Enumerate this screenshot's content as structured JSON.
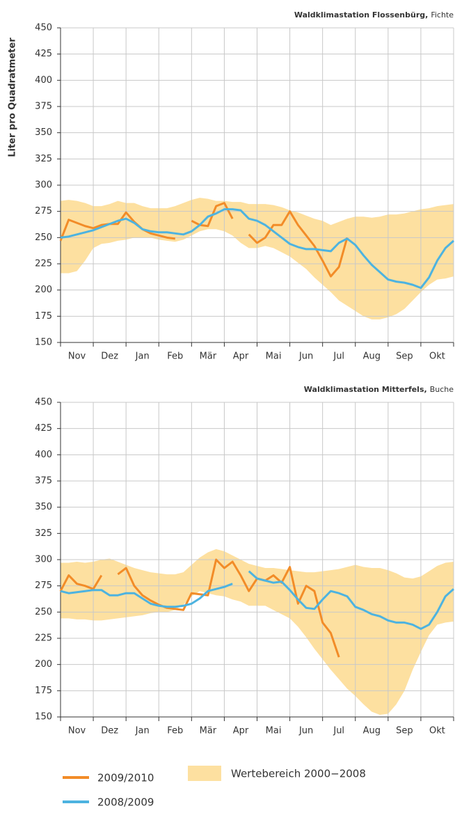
{
  "chart_data": [
    {
      "type": "line",
      "title": "Waldklimastation Flossenbürg,",
      "subtitle": "Fichte",
      "y_label": "Liter pro Quadratmeter",
      "xlim": [
        0,
        12
      ],
      "ylim": [
        150,
        450
      ],
      "yticks": [
        150,
        175,
        200,
        225,
        250,
        275,
        300,
        325,
        350,
        375,
        400,
        425,
        450
      ],
      "grid": true,
      "xticks": [
        {
          "value": 0.5,
          "label": "Nov"
        },
        {
          "value": 1.5,
          "label": "Dez"
        },
        {
          "value": 2.5,
          "label": "Jan"
        },
        {
          "value": 3.5,
          "label": "Feb"
        },
        {
          "value": 4.5,
          "label": "Mär"
        },
        {
          "value": 5.5,
          "label": "Apr"
        },
        {
          "value": 6.5,
          "label": "Mai"
        },
        {
          "value": 7.5,
          "label": "Jun"
        },
        {
          "value": 8.5,
          "label": "Jul"
        },
        {
          "value": 9.5,
          "label": "Aug"
        },
        {
          "value": 10.5,
          "label": "Sep"
        },
        {
          "value": 11.5,
          "label": "Okt"
        }
      ],
      "x": [
        0,
        0.25,
        0.5,
        0.75,
        1,
        1.25,
        1.5,
        1.75,
        2,
        2.25,
        2.5,
        2.75,
        3,
        3.25,
        3.5,
        3.75,
        4,
        4.25,
        4.5,
        4.75,
        5,
        5.25,
        5.5,
        5.75,
        6,
        6.25,
        6.5,
        6.75,
        7,
        7.25,
        7.5,
        7.75,
        8,
        8.25,
        8.5,
        8.75,
        9,
        9.25,
        9.5,
        9.75,
        10,
        10.25,
        10.5,
        10.75,
        11,
        11.25,
        11.5,
        11.75,
        12
      ],
      "band": {
        "name": "Wertebereich 2000−2008",
        "color": "#fde0a0",
        "high": [
          285,
          286,
          285,
          283,
          280,
          280,
          282,
          285,
          283,
          283,
          280,
          278,
          278,
          278,
          280,
          283,
          286,
          288,
          287,
          285,
          285,
          284,
          284,
          282,
          282,
          282,
          281,
          279,
          276,
          274,
          271,
          268,
          266,
          262,
          265,
          268,
          270,
          270,
          269,
          270,
          272,
          272,
          273,
          275,
          277,
          278,
          280,
          281,
          282
        ],
        "low": [
          216,
          216,
          218,
          228,
          240,
          244,
          245,
          247,
          248,
          250,
          250,
          250,
          248,
          247,
          246,
          248,
          252,
          256,
          258,
          258,
          256,
          252,
          245,
          240,
          240,
          242,
          240,
          236,
          232,
          226,
          220,
          212,
          205,
          198,
          190,
          185,
          180,
          175,
          172,
          172,
          174,
          177,
          182,
          190,
          198,
          205,
          210,
          211,
          213
        ]
      },
      "series": [
        {
          "name": "2009/2010",
          "color": "#f28c28",
          "values": [
            247,
            267,
            264,
            261,
            259,
            262,
            263,
            263,
            274,
            265,
            258,
            254,
            252,
            250,
            249,
            null,
            266,
            262,
            261,
            280,
            283,
            268,
            null,
            253,
            245,
            250,
            262,
            262,
            275,
            262,
            252,
            242,
            228,
            213,
            222,
            250,
            null,
            null,
            null,
            null,
            null,
            null,
            null,
            null,
            null,
            null,
            null,
            null,
            null
          ]
        },
        {
          "name": "2008/2009",
          "color": "#4db3e0",
          "values": [
            250,
            251,
            253,
            255,
            257,
            260,
            263,
            266,
            268,
            264,
            258,
            256,
            255,
            255,
            254,
            253,
            256,
            262,
            270,
            273,
            277,
            277,
            276,
            268,
            266,
            262,
            256,
            250,
            244,
            241,
            239,
            239,
            238,
            237,
            245,
            249,
            243,
            233,
            224,
            217,
            210,
            208,
            207,
            205,
            202,
            212,
            228,
            240,
            247
          ]
        }
      ]
    },
    {
      "type": "line",
      "title": "Waldklimastation Mitterfels,",
      "subtitle": "Buche",
      "xlim": [
        0,
        12
      ],
      "ylim": [
        150,
        450
      ],
      "yticks": [
        150,
        175,
        200,
        225,
        250,
        275,
        300,
        325,
        350,
        375,
        400,
        425,
        450
      ],
      "grid": true,
      "xticks": [
        {
          "value": 0.5,
          "label": "Nov"
        },
        {
          "value": 1.5,
          "label": "Dez"
        },
        {
          "value": 2.5,
          "label": "Jan"
        },
        {
          "value": 3.5,
          "label": "Feb"
        },
        {
          "value": 4.5,
          "label": "Mär"
        },
        {
          "value": 5.5,
          "label": "Apr"
        },
        {
          "value": 6.5,
          "label": "Mai"
        },
        {
          "value": 7.5,
          "label": "Jun"
        },
        {
          "value": 8.5,
          "label": "Jul"
        },
        {
          "value": 9.5,
          "label": "Aug"
        },
        {
          "value": 10.5,
          "label": "Sep"
        },
        {
          "value": 11.5,
          "label": "Okt"
        }
      ],
      "x": [
        0,
        0.25,
        0.5,
        0.75,
        1,
        1.25,
        1.5,
        1.75,
        2,
        2.25,
        2.5,
        2.75,
        3,
        3.25,
        3.5,
        3.75,
        4,
        4.25,
        4.5,
        4.75,
        5,
        5.25,
        5.5,
        5.75,
        6,
        6.25,
        6.5,
        6.75,
        7,
        7.25,
        7.5,
        7.75,
        8,
        8.25,
        8.5,
        8.75,
        9,
        9.25,
        9.5,
        9.75,
        10,
        10.25,
        10.5,
        10.75,
        11,
        11.25,
        11.5,
        11.75,
        12
      ],
      "band": {
        "name": "Wertebereich 2000−2008",
        "color": "#fde0a0",
        "high": [
          297,
          297,
          298,
          297,
          298,
          300,
          301,
          298,
          295,
          292,
          290,
          288,
          287,
          286,
          286,
          288,
          295,
          302,
          307,
          310,
          308,
          304,
          300,
          296,
          294,
          292,
          292,
          291,
          290,
          289,
          288,
          288,
          289,
          290,
          291,
          293,
          295,
          293,
          292,
          292,
          290,
          287,
          283,
          282,
          284,
          289,
          294,
          297,
          298
        ],
        "low": [
          244,
          244,
          243,
          243,
          242,
          242,
          243,
          244,
          245,
          246,
          247,
          249,
          250,
          250,
          252,
          257,
          265,
          270,
          268,
          266,
          265,
          262,
          260,
          256,
          256,
          256,
          252,
          248,
          244,
          236,
          226,
          215,
          205,
          195,
          186,
          177,
          170,
          162,
          155,
          152,
          153,
          162,
          175,
          195,
          212,
          228,
          238,
          240,
          241
        ]
      },
      "series": [
        {
          "name": "2009/2010",
          "color": "#f28c28",
          "values": [
            270,
            285,
            277,
            275,
            272,
            285,
            null,
            286,
            292,
            275,
            266,
            261,
            257,
            254,
            253,
            252,
            268,
            267,
            266,
            300,
            292,
            298,
            285,
            270,
            282,
            280,
            285,
            278,
            293,
            258,
            275,
            270,
            240,
            230,
            207,
            null,
            null,
            null,
            null,
            null,
            null,
            null,
            null,
            null,
            null,
            null,
            null,
            null,
            null
          ]
        },
        {
          "name": "2008/2009",
          "color": "#4db3e0",
          "values": [
            270,
            268,
            269,
            270,
            271,
            271,
            266,
            266,
            268,
            268,
            263,
            258,
            256,
            255,
            255,
            256,
            258,
            263,
            270,
            272,
            274,
            277,
            null,
            289,
            282,
            280,
            278,
            279,
            271,
            262,
            254,
            253,
            262,
            270,
            268,
            265,
            255,
            252,
            248,
            246,
            242,
            240,
            240,
            238,
            234,
            238,
            250,
            265,
            272
          ]
        }
      ]
    }
  ]
}
